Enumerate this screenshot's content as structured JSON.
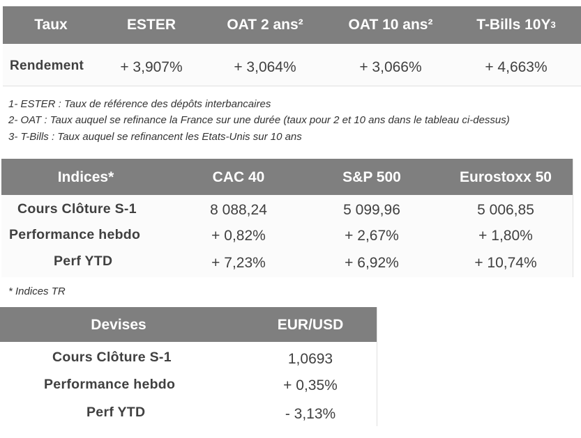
{
  "taux": {
    "headers": [
      "Taux",
      "ESTER",
      "OAT 2 ans²",
      "OAT 10 ans²",
      "T-Bills 10Y"
    ],
    "tbills_superscript": "3",
    "row_label": "Rendement",
    "values": [
      "+ 3,907%",
      "+ 3,064%",
      "+ 3,066%",
      "+ 4,663%"
    ]
  },
  "notes": [
    "1- ESTER : Taux de référence des dépôts interbancaires",
    "2- OAT : Taux auquel se refinance la France sur une durée (taux pour 2 et 10 ans dans le tableau ci-dessus)",
    "3- T-Bills : Taux auquel se refinancent les Etats-Unis sur 10 ans"
  ],
  "indices": {
    "headers": [
      "Indices*",
      "CAC 40",
      "S&P 500",
      "Eurostoxx 50"
    ],
    "rows": [
      {
        "label": "Cours Clôture S-1",
        "values": [
          "8 088,24",
          "5 099,96",
          "5 006,85"
        ]
      },
      {
        "label": "Performance hebdo",
        "values": [
          "+ 0,82%",
          "+ 2,67%",
          "+ 1,80%"
        ]
      },
      {
        "label": "Perf YTD",
        "values": [
          "+ 7,23%",
          "+ 6,92%",
          "+ 10,74%"
        ]
      }
    ],
    "footnote": "* Indices TR"
  },
  "devises": {
    "headers": [
      "Devises",
      "EUR/USD"
    ],
    "rows": [
      {
        "label": "Cours Clôture S-1",
        "value": "1,0693"
      },
      {
        "label": "Performance hebdo",
        "value": "+ 0,35%"
      },
      {
        "label": "Perf YTD",
        "value": "- 3,13%"
      }
    ]
  }
}
